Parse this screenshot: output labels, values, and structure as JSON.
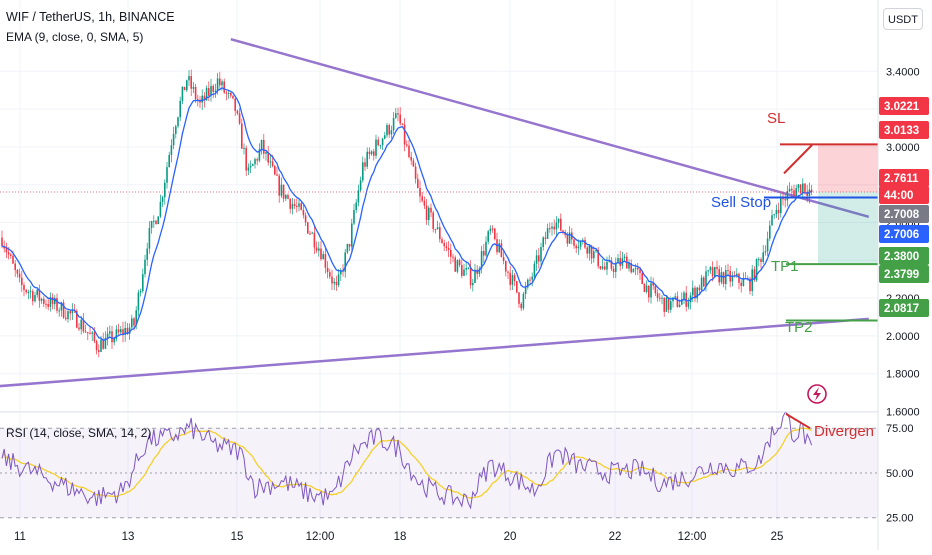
{
  "header": {
    "title": "WIF / TetherUS, 1h, BINANCE",
    "ema": "EMA (9, close, 0, SMA, 5)",
    "unit": "USDT"
  },
  "rsi_label": "RSI (14, close, SMA, 14, 2)",
  "annotations": {
    "sl": "SL",
    "sell_stop": "Sell Stop",
    "tp1": "TP1",
    "tp2": "TP2",
    "divergence": "Divergen"
  },
  "countdown": "44:00",
  "colors": {
    "up": "#089981",
    "down": "#f23645",
    "ema": "#2962ff",
    "trend": "#9575cd",
    "sl": "#d32f2f",
    "entry": "#1e53e5",
    "tp": "#43a047",
    "rsi": "#7e57c2",
    "rsi_ma": "#f5d02a"
  },
  "chart_data": [
    {
      "type": "candlestick",
      "title": "WIF / TetherUS, 1h, BINANCE",
      "x_ticks": [
        "11",
        "13",
        "15",
        "12:00",
        "18",
        "20",
        "22",
        "12:00",
        "25"
      ],
      "y_ticks": [
        1.6,
        1.8,
        2.0,
        2.2,
        2.4,
        2.6,
        2.8,
        3.0,
        3.2,
        3.4
      ],
      "y_tick_labels": [
        "1.6000",
        "1.8000",
        "2.0000",
        "2.2000",
        "2.4000",
        "2.6000",
        "2.8000",
        "3.0000",
        "3.2000",
        "3.4000"
      ],
      "ylim": [
        1.55,
        3.63
      ],
      "key_path": [
        {
          "t": 0,
          "p": 2.52
        },
        {
          "t": 8,
          "p": 2.27
        },
        {
          "t": 17,
          "p": 2.2
        },
        {
          "t": 26,
          "p": 2.15
        },
        {
          "t": 35,
          "p": 2.08
        },
        {
          "t": 43,
          "p": 1.95
        },
        {
          "t": 52,
          "p": 2.0
        },
        {
          "t": 60,
          "p": 2.06
        },
        {
          "t": 66,
          "p": 2.5
        },
        {
          "t": 72,
          "p": 2.7
        },
        {
          "t": 78,
          "p": 3.1
        },
        {
          "t": 84,
          "p": 3.36
        },
        {
          "t": 90,
          "p": 3.22
        },
        {
          "t": 98,
          "p": 3.35
        },
        {
          "t": 106,
          "p": 3.2
        },
        {
          "t": 112,
          "p": 2.85
        },
        {
          "t": 118,
          "p": 3.0
        },
        {
          "t": 126,
          "p": 2.78
        },
        {
          "t": 135,
          "p": 2.66
        },
        {
          "t": 145,
          "p": 2.45
        },
        {
          "t": 152,
          "p": 2.24
        },
        {
          "t": 158,
          "p": 2.5
        },
        {
          "t": 164,
          "p": 2.9
        },
        {
          "t": 172,
          "p": 3.04
        },
        {
          "t": 180,
          "p": 3.16
        },
        {
          "t": 186,
          "p": 2.9
        },
        {
          "t": 190,
          "p": 2.72
        },
        {
          "t": 198,
          "p": 2.55
        },
        {
          "t": 206,
          "p": 2.38
        },
        {
          "t": 214,
          "p": 2.3
        },
        {
          "t": 222,
          "p": 2.55
        },
        {
          "t": 230,
          "p": 2.34
        },
        {
          "t": 236,
          "p": 2.18
        },
        {
          "t": 242,
          "p": 2.35
        },
        {
          "t": 250,
          "p": 2.62
        },
        {
          "t": 258,
          "p": 2.52
        },
        {
          "t": 266,
          "p": 2.48
        },
        {
          "t": 274,
          "p": 2.35
        },
        {
          "t": 284,
          "p": 2.4
        },
        {
          "t": 292,
          "p": 2.27
        },
        {
          "t": 302,
          "p": 2.16
        },
        {
          "t": 312,
          "p": 2.2
        },
        {
          "t": 322,
          "p": 2.33
        },
        {
          "t": 332,
          "p": 2.3
        },
        {
          "t": 340,
          "p": 2.28
        },
        {
          "t": 346,
          "p": 2.45
        },
        {
          "t": 352,
          "p": 2.68
        },
        {
          "t": 358,
          "p": 2.76
        },
        {
          "t": 364,
          "p": 2.8
        },
        {
          "t": 368,
          "p": 2.76
        }
      ],
      "candle_count": 369,
      "ema": "EMA (9, close, 0, SMA, 5)",
      "trendlines": [
        {
          "from": {
            "t": 104,
            "p": 3.57
          },
          "to": {
            "t": 394,
            "p": 2.63
          }
        },
        {
          "from": {
            "t": -6,
            "p": 1.73
          },
          "to": {
            "t": 394,
            "p": 2.09
          }
        }
      ],
      "levels": {
        "sl": 3.0133,
        "sell_stop": 2.7006,
        "tp1": 2.38,
        "tp2": 2.0817
      },
      "price_labels": [
        {
          "text": "3.0221",
          "value": 3.0221,
          "color": "#f23645"
        },
        {
          "text": "3.0133",
          "value": 3.0133,
          "color": "#f23645"
        },
        {
          "text": "2.7611",
          "value": 2.7611,
          "color": "#f23645"
        },
        {
          "text": "44:00",
          "value": 2.7611,
          "color": "#f23645"
        },
        {
          "text": "2.7008",
          "value": 2.7008,
          "color": "#787b86"
        },
        {
          "text": "2.7006",
          "value": 2.7006,
          "color": "#2962ff"
        },
        {
          "text": "2.3800",
          "value": 2.38,
          "color": "#43a047"
        },
        {
          "text": "2.3799",
          "value": 2.3799,
          "color": "#43a047"
        },
        {
          "text": "2.0817",
          "value": 2.0817,
          "color": "#43a047"
        }
      ],
      "last_price": 2.7611
    },
    {
      "type": "line",
      "title": "RSI (14, close, SMA, 14, 2)",
      "series": [
        {
          "name": "RSI",
          "key_path": [
            {
              "t": 0,
              "p": 58
            },
            {
              "t": 15,
              "p": 50
            },
            {
              "t": 30,
              "p": 42
            },
            {
              "t": 42,
              "p": 36
            },
            {
              "t": 55,
              "p": 40
            },
            {
              "t": 66,
              "p": 68
            },
            {
              "t": 76,
              "p": 70
            },
            {
              "t": 86,
              "p": 75
            },
            {
              "t": 96,
              "p": 66
            },
            {
              "t": 108,
              "p": 62
            },
            {
              "t": 115,
              "p": 42
            },
            {
              "t": 128,
              "p": 45
            },
            {
              "t": 140,
              "p": 38
            },
            {
              "t": 150,
              "p": 36
            },
            {
              "t": 160,
              "p": 62
            },
            {
              "t": 170,
              "p": 70
            },
            {
              "t": 180,
              "p": 64
            },
            {
              "t": 190,
              "p": 44
            },
            {
              "t": 200,
              "p": 38
            },
            {
              "t": 212,
              "p": 34
            },
            {
              "t": 222,
              "p": 55
            },
            {
              "t": 232,
              "p": 48
            },
            {
              "t": 242,
              "p": 40
            },
            {
              "t": 252,
              "p": 62
            },
            {
              "t": 262,
              "p": 54
            },
            {
              "t": 276,
              "p": 50
            },
            {
              "t": 290,
              "p": 52
            },
            {
              "t": 300,
              "p": 44
            },
            {
              "t": 312,
              "p": 48
            },
            {
              "t": 324,
              "p": 55
            },
            {
              "t": 334,
              "p": 52
            },
            {
              "t": 344,
              "p": 56
            },
            {
              "t": 350,
              "p": 72
            },
            {
              "t": 356,
              "p": 82
            },
            {
              "t": 360,
              "p": 72
            },
            {
              "t": 364,
              "p": 74
            },
            {
              "t": 368,
              "p": 60
            }
          ]
        },
        {
          "name": "RSI-based MA"
        }
      ],
      "y_ticks": [
        25,
        50,
        75
      ],
      "y_tick_labels": [
        "25.00",
        "50.00",
        "75.00"
      ],
      "bands": [
        30,
        70
      ],
      "ylim": [
        22,
        86
      ]
    }
  ]
}
